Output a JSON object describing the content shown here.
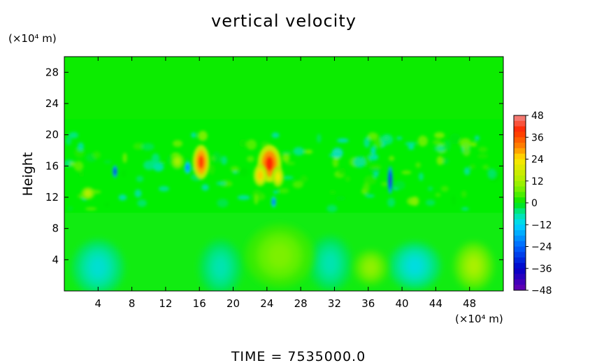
{
  "chart_data": {
    "type": "heatmap",
    "title": "vertical velocity",
    "ylabel": "Height",
    "y_unit": "(×10⁴ m)",
    "x_unit": "(×10⁴ m)",
    "xlim": [
      0,
      52
    ],
    "ylim": [
      0,
      30
    ],
    "x_ticks": [
      "4",
      "8",
      "12",
      "16",
      "20",
      "24",
      "28",
      "32",
      "36",
      "40",
      "44",
      "48"
    ],
    "y_ticks": [
      "4",
      "8",
      "12",
      "16",
      "20",
      "24",
      "28"
    ],
    "colorbar": {
      "ticks": [
        "48",
        "36",
        "24",
        "12",
        "0",
        "−12",
        "−24",
        "−36",
        "−48"
      ],
      "range": [
        -48,
        48
      ]
    },
    "background_value": 2,
    "features": [
      {
        "x": 16.2,
        "y": 16.5,
        "value": 38,
        "rx": 1.0,
        "ry": 2.2
      },
      {
        "x": 24.3,
        "y": 16.3,
        "value": 40,
        "rx": 1.4,
        "ry": 2.4
      },
      {
        "x": 23.2,
        "y": 14.8,
        "value": 26,
        "rx": 0.8,
        "ry": 1.4
      },
      {
        "x": 25.3,
        "y": 14.6,
        "value": 22,
        "rx": 0.7,
        "ry": 1.3
      },
      {
        "x": 38.6,
        "y": 14.2,
        "value": -38,
        "rx": 0.3,
        "ry": 1.8
      },
      {
        "x": 6.0,
        "y": 15.3,
        "value": -34,
        "rx": 0.3,
        "ry": 0.8
      },
      {
        "x": 14.6,
        "y": 15.8,
        "value": -22,
        "rx": 0.4,
        "ry": 0.8
      },
      {
        "x": 24.8,
        "y": 11.4,
        "value": -26,
        "rx": 0.3,
        "ry": 0.7
      },
      {
        "x": 2.8,
        "y": 12.5,
        "value": 14,
        "rx": 0.8,
        "ry": 0.8
      },
      {
        "x": 13.4,
        "y": 16.6,
        "value": 12,
        "rx": 0.8,
        "ry": 1.0
      },
      {
        "x": 4.0,
        "y": 3.0,
        "value": -9,
        "rx": 3.0,
        "ry": 3.5
      },
      {
        "x": 18.5,
        "y": 3.0,
        "value": -7,
        "rx": 2.5,
        "ry": 3.5
      },
      {
        "x": 31.5,
        "y": 3.5,
        "value": -7,
        "rx": 2.5,
        "ry": 3.5
      },
      {
        "x": 41.5,
        "y": 3.2,
        "value": -10,
        "rx": 3.0,
        "ry": 3.0
      },
      {
        "x": 25.5,
        "y": 4.5,
        "value": 8,
        "rx": 4.0,
        "ry": 4.0
      },
      {
        "x": 36.3,
        "y": 3.0,
        "value": 10,
        "rx": 2.0,
        "ry": 2.2
      },
      {
        "x": 48.5,
        "y": 3.2,
        "value": 12,
        "rx": 2.3,
        "ry": 3.0
      }
    ],
    "footer": "TIME  =  7535000.0"
  }
}
